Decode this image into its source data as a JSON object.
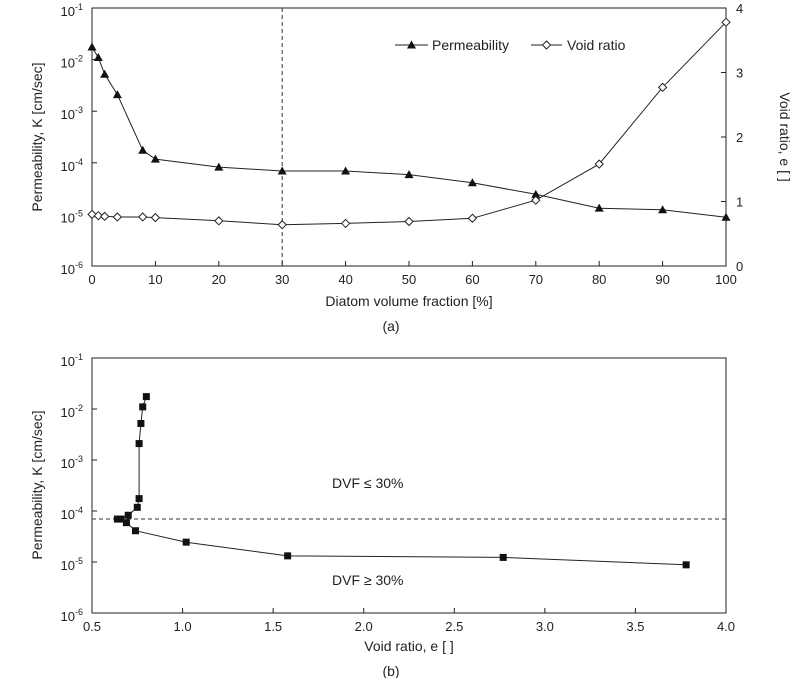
{
  "chart_data": [
    {
      "type": "line",
      "caption": "(a)",
      "xlabel": "Diatom volume fraction [%]",
      "ylabel": "Permeability,  K [cm/sec]",
      "y2label": "Void ratio,  e [ ]",
      "xlim": [
        0,
        100
      ],
      "xticks": [
        0,
        10,
        20,
        30,
        40,
        50,
        60,
        70,
        80,
        90,
        100
      ],
      "ylim": [
        1e-06,
        0.1
      ],
      "yscale": "log",
      "yticks": [
        {
          "base": "10",
          "exp": "-1"
        },
        {
          "base": "10",
          "exp": "-2"
        },
        {
          "base": "10",
          "exp": "-3"
        },
        {
          "base": "10",
          "exp": "-4"
        },
        {
          "base": "10",
          "exp": "-5"
        },
        {
          "base": "10",
          "exp": "-6"
        }
      ],
      "y2lim": [
        0,
        4
      ],
      "y2ticks": [
        "0",
        "1",
        "2",
        "3",
        "4"
      ],
      "legend_position": "top-right",
      "reference_line": {
        "orientation": "vertical",
        "x": 30,
        "style": "dashed"
      },
      "grid": false,
      "series": [
        {
          "name": "Permeability",
          "axis": "left",
          "marker": "filled-triangle",
          "x": [
            0,
            1,
            2,
            4,
            8,
            10,
            20,
            30,
            40,
            50,
            60,
            70,
            80,
            90,
            100
          ],
          "y": [
            0.0175,
            0.011,
            0.0052,
            0.0021,
            0.000175,
            0.000118,
            8.25e-05,
            6.95e-05,
            6.95e-05,
            5.9e-05,
            4.1e-05,
            2.45e-05,
            1.32e-05,
            1.23e-05,
            8.8e-06
          ]
        },
        {
          "name": "Void ratio",
          "axis": "right",
          "marker": "open-diamond",
          "x": [
            0,
            1,
            2,
            4,
            8,
            10,
            20,
            30,
            40,
            50,
            60,
            70,
            80,
            90,
            100
          ],
          "y": [
            0.8,
            0.78,
            0.77,
            0.76,
            0.76,
            0.75,
            0.7,
            0.64,
            0.66,
            0.69,
            0.74,
            1.02,
            1.58,
            2.77,
            3.78
          ]
        }
      ]
    },
    {
      "type": "line",
      "caption": "(b)",
      "xlabel": "Void ratio,  e [ ]",
      "ylabel": "Permeability,  K [cm/sec]",
      "xlim": [
        0.5,
        4.0
      ],
      "xticks": [
        "0.5",
        "1.0",
        "1.5",
        "2.0",
        "2.5",
        "3.0",
        "3.5",
        "4.0"
      ],
      "ylim": [
        1e-06,
        0.1
      ],
      "yscale": "log",
      "yticks": [
        {
          "base": "10",
          "exp": "-1"
        },
        {
          "base": "10",
          "exp": "-2"
        },
        {
          "base": "10",
          "exp": "-3"
        },
        {
          "base": "10",
          "exp": "-4"
        },
        {
          "base": "10",
          "exp": "-5"
        },
        {
          "base": "10",
          "exp": "-6"
        }
      ],
      "reference_line": {
        "orientation": "horizontal",
        "y": 6.95e-05,
        "style": "dashed"
      },
      "annotations": [
        "DVF ≤ 30%",
        "DVF ≥ 30%"
      ],
      "grid": false,
      "series": [
        {
          "marker": "filled-square",
          "x": [
            0.8,
            0.78,
            0.77,
            0.76,
            0.76,
            0.75,
            0.7,
            0.66,
            0.64,
            0.69,
            0.74,
            1.02,
            1.58,
            2.77,
            3.78
          ],
          "y": [
            0.0175,
            0.011,
            0.0052,
            0.0021,
            0.000175,
            0.000118,
            8.25e-05,
            6.95e-05,
            6.95e-05,
            5.9e-05,
            4.1e-05,
            2.45e-05,
            1.32e-05,
            1.23e-05,
            8.8e-06
          ]
        }
      ]
    }
  ]
}
